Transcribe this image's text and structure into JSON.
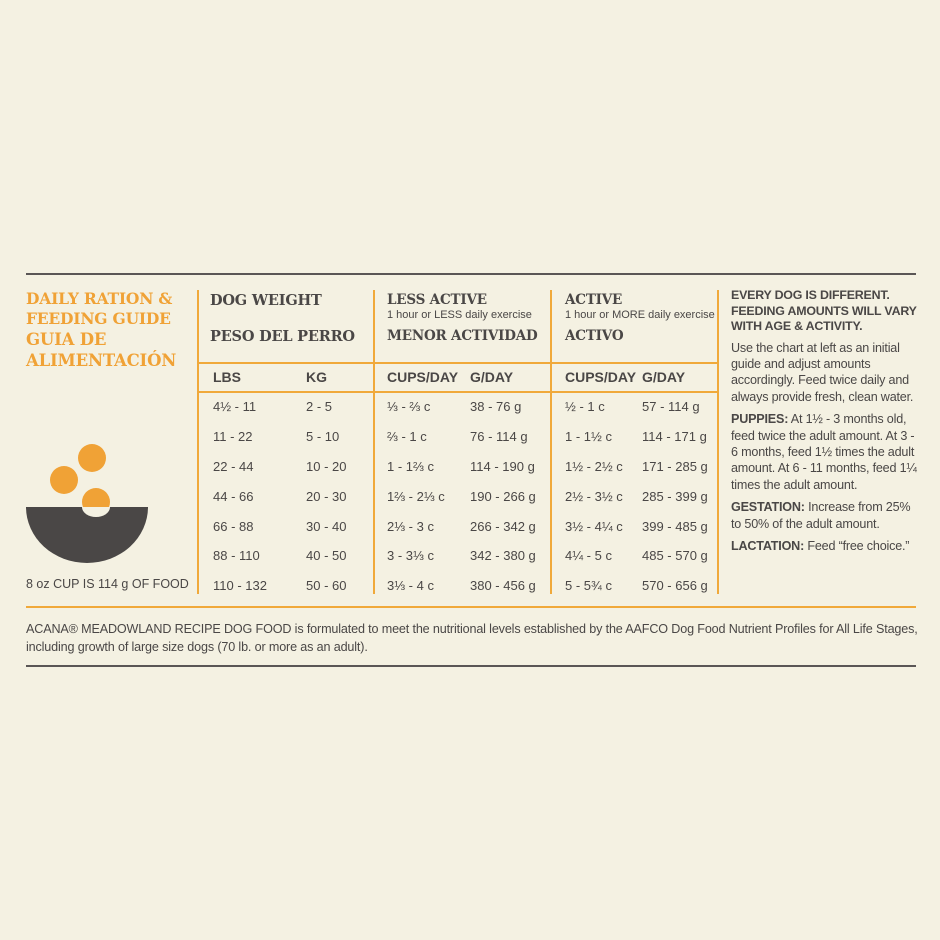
{
  "title": {
    "en_line1": "DAILY RATION &",
    "en_line2": "FEEDING GUIDE",
    "es_line1": "GUIA DE",
    "es_line2": "ALIMENTACIÓN"
  },
  "headers": {
    "dog_weight": "DOG WEIGHT",
    "dog_weight_es": "PESO DEL PERRO",
    "less_active": "LESS ACTIVE",
    "less_active_sub": "1 hour or LESS daily exercise",
    "less_active_es": "MENOR ACTIVIDAD",
    "active": "ACTIVE",
    "active_sub": "1 hour or MORE daily exercise",
    "active_es": "ACTIVO"
  },
  "columns": [
    "LBS",
    "KG",
    "CUPS/DAY",
    "G/DAY",
    "CUPS/DAY",
    "G/DAY"
  ],
  "rows": [
    [
      "4½ - 11",
      "2 - 5",
      "⅓ - ⅔ c",
      "38 - 76 g",
      "½ - 1 c",
      "57 - 114 g"
    ],
    [
      "11 - 22",
      "5 - 10",
      "⅔ - 1 c",
      "76 - 114 g",
      "1 - 1½ c",
      "114 - 171 g"
    ],
    [
      "22 - 44",
      "10 - 20",
      "1 - 1⅔ c",
      "114 - 190 g",
      "1½ - 2½ c",
      "171 - 285 g"
    ],
    [
      "44 - 66",
      "20 - 30",
      "1⅔ - 2⅓ c",
      "190 - 266 g",
      "2½ - 3½ c",
      "285 - 399 g"
    ],
    [
      "66 - 88",
      "30 - 40",
      "2⅓ - 3 c",
      "266 - 342 g",
      "3½ - 4¼ c",
      "399 - 485 g"
    ],
    [
      "88 - 110",
      "40 - 50",
      "3 - 3⅓ c",
      "342 - 380 g",
      "4¼ - 5 c",
      "485 - 570 g"
    ],
    [
      "110 - 132",
      "50 - 60",
      "3⅓ - 4 c",
      "380 - 456 g",
      "5 - 5¾ c",
      "570 - 656 g"
    ]
  ],
  "cup_note": "8 oz CUP IS 114 g OF FOOD",
  "side": {
    "intro": "EVERY DOG IS DIFFERENT. FEEDING AMOUNTS WILL VARY WITH AGE & ACTIVITY.",
    "body": "Use the chart at left as an initial guide and adjust amounts accordingly. Feed twice daily and always provide fresh, clean water.",
    "puppies_label": "PUPPIES:",
    "puppies_text": "At 1½ - 3 months old, feed twice the adult amount. At 3 - 6 months, feed 1½ times the adult amount. At 6 - 11 months, feed 1¼ times the adult amount.",
    "gestation_label": "GESTATION:",
    "gestation_text": "Increase from 25% to 50% of the adult amount.",
    "lactation_label": "LACTATION:",
    "lactation_text": "Feed “free choice.”"
  },
  "footer": "ACANA® MEADOWLAND RECIPE DOG FOOD is formulated to meet the nutritional levels established by the AAFCO Dog Food Nutrient Profiles for All Life Stages, including growth of large size dogs (70 lb. or more as an adult).",
  "colors": {
    "accent": "#f0a236",
    "text": "#4a4746",
    "background": "#f4f1e2",
    "bowl": "#4a4746"
  },
  "icons": [
    "food-bowl-icon"
  ]
}
